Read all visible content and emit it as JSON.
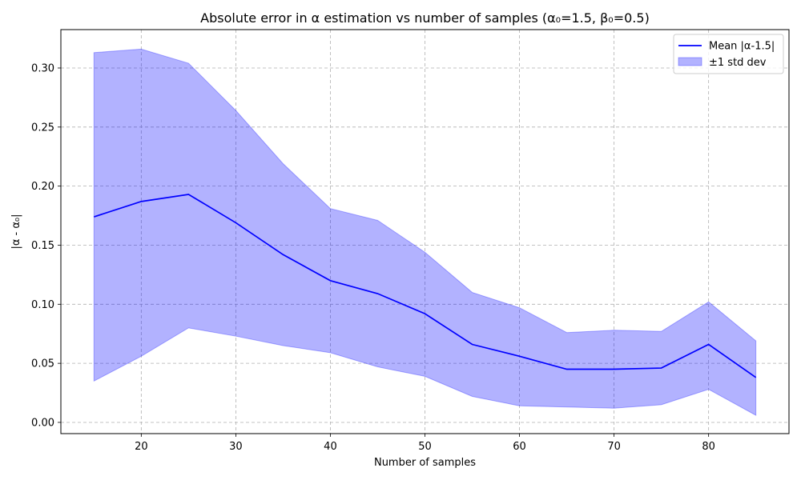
{
  "chart_data": {
    "type": "line",
    "title": "Absolute error in α estimation vs number of samples (α₀=1.5, β₀=0.5)",
    "xlabel": "Number of samples",
    "ylabel": "|α - α₀|",
    "xlim": [
      11.5,
      88.5
    ],
    "ylim": [
      -0.0095,
      0.3325
    ],
    "xticks": [
      20,
      30,
      40,
      50,
      60,
      70,
      80
    ],
    "yticks": [
      0.0,
      0.05,
      0.1,
      0.15,
      0.2,
      0.25,
      0.3
    ],
    "ytick_labels": [
      "0.00",
      "0.05",
      "0.10",
      "0.15",
      "0.20",
      "0.25",
      "0.30"
    ],
    "grid": true,
    "legend_position": "top-right",
    "x": [
      15,
      20,
      25,
      30,
      35,
      40,
      45,
      50,
      55,
      60,
      65,
      70,
      75,
      80,
      85
    ],
    "series": [
      {
        "name": "Mean |α-1.5|",
        "kind": "line",
        "color": "#0000ff",
        "values": [
          0.174,
          0.187,
          0.193,
          0.169,
          0.142,
          0.12,
          0.109,
          0.092,
          0.066,
          0.056,
          0.045,
          0.045,
          0.046,
          0.066,
          0.038
        ]
      },
      {
        "name": "±1 std dev",
        "kind": "band",
        "color": "#0000ff",
        "upper": [
          0.313,
          0.316,
          0.304,
          0.264,
          0.219,
          0.181,
          0.171,
          0.144,
          0.11,
          0.097,
          0.076,
          0.078,
          0.077,
          0.102,
          0.069
        ],
        "lower": [
          0.035,
          0.056,
          0.08,
          0.073,
          0.065,
          0.059,
          0.047,
          0.039,
          0.022,
          0.014,
          0.013,
          0.012,
          0.015,
          0.028,
          0.006
        ]
      }
    ]
  }
}
